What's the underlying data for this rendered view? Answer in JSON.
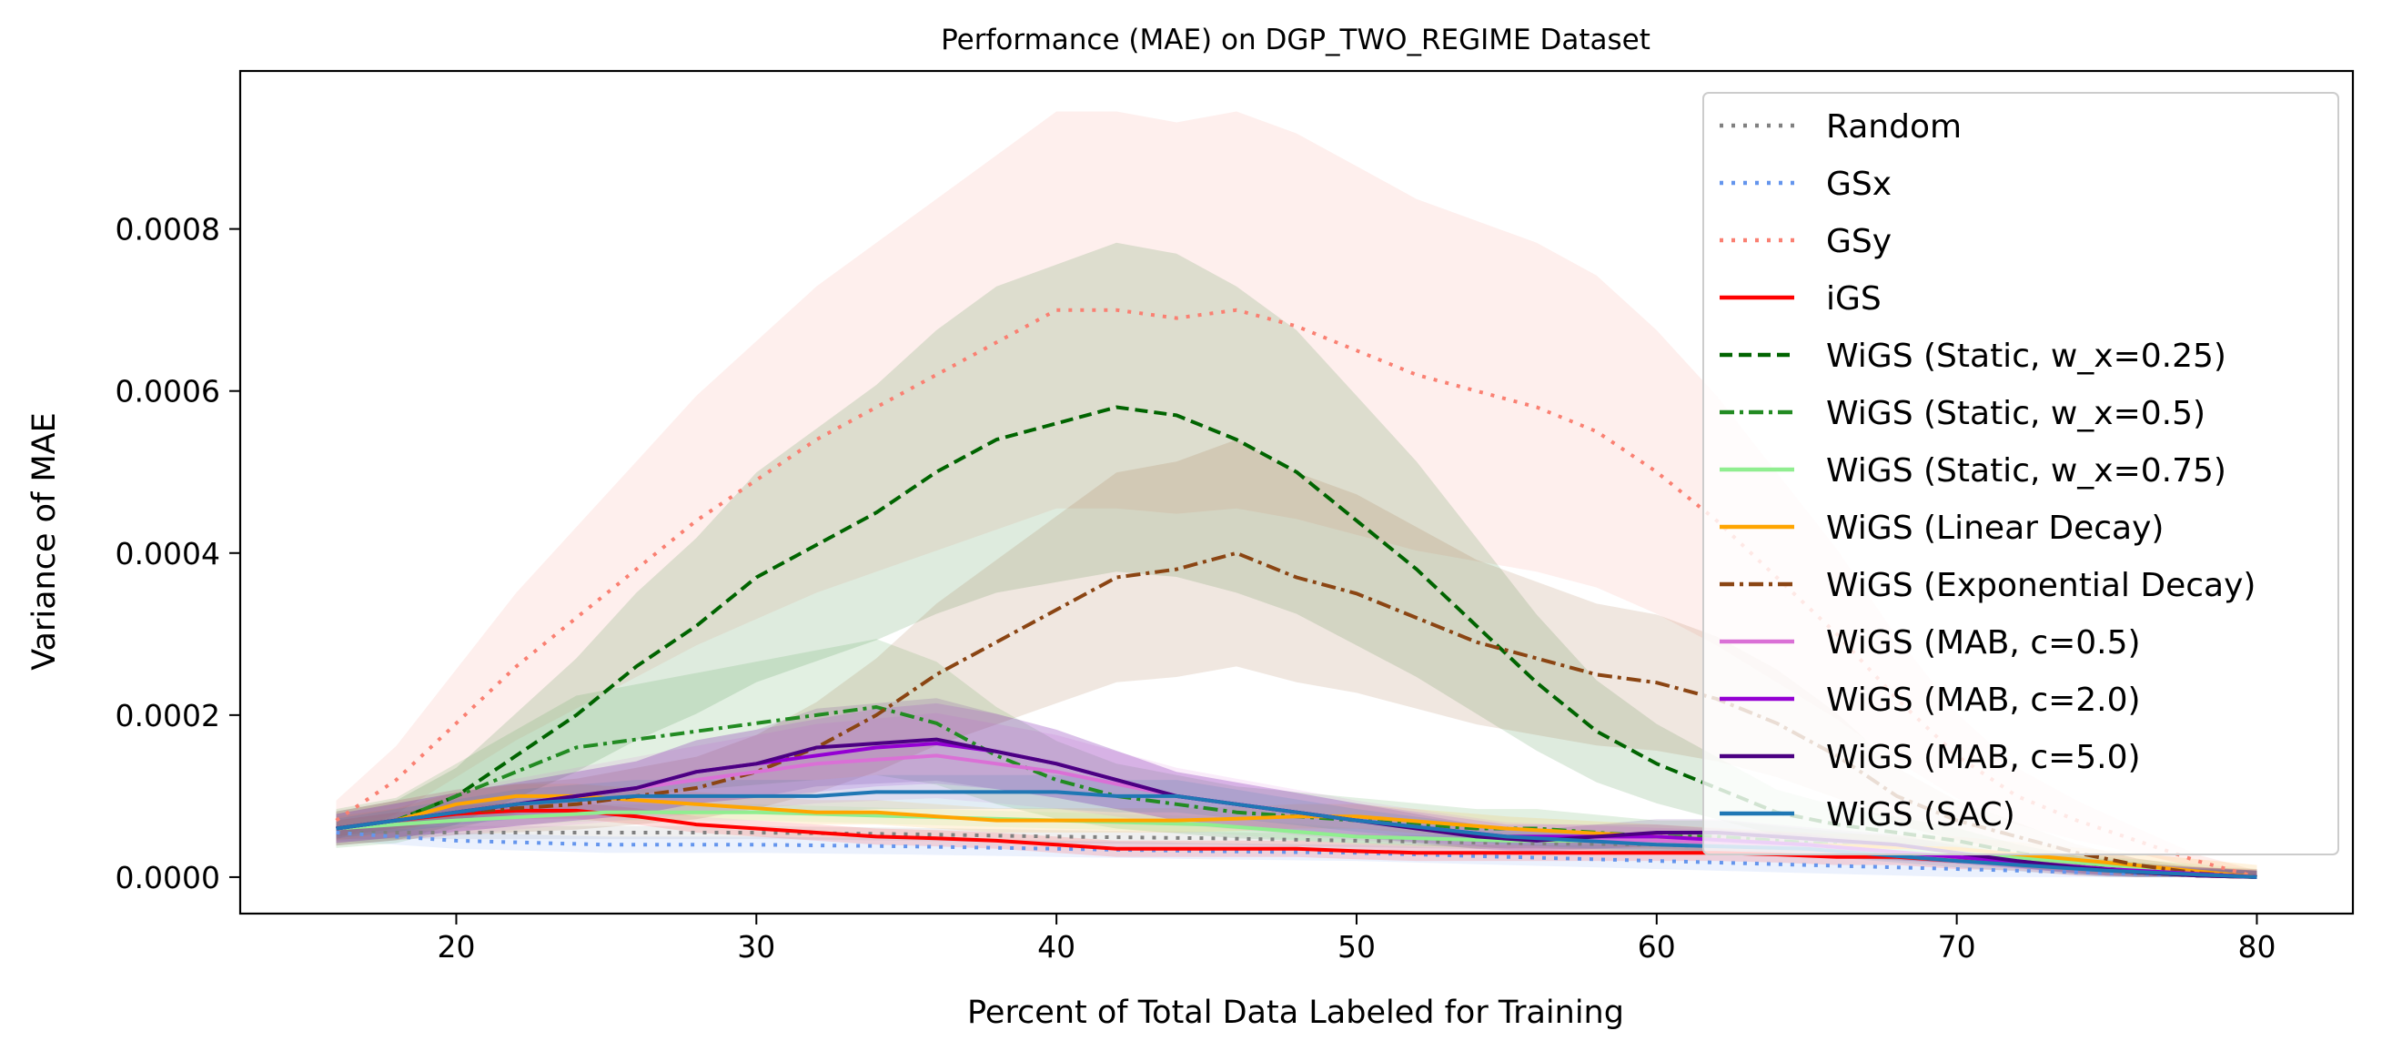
{
  "chart_data": {
    "type": "line",
    "title": "Performance (MAE) on DGP_TWO_REGIME Dataset",
    "xlabel": "Percent of Total Data Labeled for Training",
    "ylabel": "Variance of MAE",
    "xlim": [
      12.8,
      83.2
    ],
    "ylim": [
      -4.5e-05,
      0.000995
    ],
    "xticks": [
      20,
      30,
      40,
      50,
      60,
      70,
      80
    ],
    "xtick_labels": [
      "20",
      "30",
      "40",
      "50",
      "60",
      "70",
      "80"
    ],
    "yticks": [
      0,
      0.0002,
      0.0004,
      0.0006,
      0.0008
    ],
    "ytick_labels": [
      "0.0000",
      "0.0002",
      "0.0004",
      "0.0006",
      "0.0008"
    ],
    "grid": false,
    "legend_position": "top-right",
    "series": [
      {
        "name": "Random",
        "color": "#808080",
        "dash": "dotted",
        "band": 8e-06,
        "x": [
          16,
          20,
          25,
          30,
          35,
          40,
          45,
          50,
          55,
          60,
          65,
          70,
          75,
          80
        ],
        "y": [
          5.5e-05,
          5.5e-05,
          5.5e-05,
          5.5e-05,
          5.3e-05,
          5e-05,
          4.8e-05,
          4.5e-05,
          4.2e-05,
          4e-05,
          3.5e-05,
          2.5e-05,
          1.2e-05,
          0
        ]
      },
      {
        "name": "GSx",
        "color": "#6495ED",
        "dash": "dotted",
        "band": 1e-05,
        "x": [
          16,
          20,
          25,
          30,
          35,
          40,
          45,
          50,
          55,
          60,
          65,
          70,
          75,
          80
        ],
        "y": [
          5.5e-05,
          4.5e-05,
          4e-05,
          4e-05,
          3.8e-05,
          3.5e-05,
          3.2e-05,
          3e-05,
          2.5e-05,
          2e-05,
          1.5e-05,
          1e-05,
          5e-06,
          0
        ]
      },
      {
        "name": "GSy",
        "color": "#FA8072",
        "dash": "dotted",
        "bandScale": 0.35,
        "x": [
          16,
          18,
          20,
          22,
          24,
          26,
          28,
          30,
          32,
          34,
          36,
          38,
          40,
          42,
          44,
          46,
          48,
          50,
          52,
          54,
          56,
          58,
          60,
          62,
          64,
          66,
          68,
          70,
          72,
          74,
          76,
          78,
          80
        ],
        "y": [
          7e-05,
          0.00012,
          0.00019,
          0.00026,
          0.00032,
          0.00038,
          0.00044,
          0.00049,
          0.00054,
          0.00058,
          0.00062,
          0.00066,
          0.0007,
          0.0007,
          0.00069,
          0.0007,
          0.00068,
          0.00065,
          0.00062,
          0.0006,
          0.00058,
          0.00055,
          0.0005,
          0.00044,
          0.00037,
          0.0003,
          0.00022,
          0.00015,
          0.0001,
          7e-05,
          4.5e-05,
          2e-05,
          0
        ]
      },
      {
        "name": "iGS",
        "color": "#FF0000",
        "dash": "solid",
        "band": 1e-05,
        "x": [
          16,
          18,
          20,
          22,
          24,
          26,
          28,
          30,
          32,
          34,
          36,
          38,
          40,
          42,
          44,
          46,
          48,
          50,
          52,
          54,
          56,
          58,
          60,
          62,
          64,
          66,
          68,
          70,
          72,
          74,
          76,
          78,
          80
        ],
        "y": [
          6e-05,
          7e-05,
          7.8e-05,
          8.2e-05,
          8.2e-05,
          7.5e-05,
          6.5e-05,
          6e-05,
          5.5e-05,
          5e-05,
          4.8e-05,
          4.5e-05,
          4e-05,
          3.5e-05,
          3.5e-05,
          3.5e-05,
          3.5e-05,
          3.2e-05,
          3e-05,
          3e-05,
          3e-05,
          3e-05,
          3e-05,
          3e-05,
          2.8e-05,
          2.5e-05,
          2.5e-05,
          2e-05,
          1.8e-05,
          1.2e-05,
          6e-06,
          2e-06,
          0
        ]
      },
      {
        "name": "WiGS (Static, w_x=0.25)",
        "color": "#006400",
        "dash": "dashed",
        "bandScale": 0.35,
        "x": [
          16,
          18,
          20,
          22,
          24,
          26,
          28,
          30,
          32,
          34,
          36,
          38,
          40,
          42,
          44,
          46,
          48,
          50,
          52,
          54,
          56,
          58,
          60,
          62,
          64,
          66,
          68,
          70,
          72,
          74,
          76,
          78,
          80
        ],
        "y": [
          6e-05,
          7e-05,
          0.0001,
          0.00015,
          0.0002,
          0.00026,
          0.00031,
          0.00037,
          0.00041,
          0.00045,
          0.0005,
          0.00054,
          0.00056,
          0.00058,
          0.00057,
          0.00054,
          0.0005,
          0.00044,
          0.00038,
          0.00031,
          0.00024,
          0.00018,
          0.00014,
          0.00011,
          8e-05,
          6.5e-05,
          5.5e-05,
          4.5e-05,
          3e-05,
          1.8e-05,
          1e-05,
          4e-06,
          0
        ]
      },
      {
        "name": "WiGS (Static, w_x=0.5)",
        "color": "#228B22",
        "dash": "dashdot",
        "bandScale": 0.4,
        "x": [
          16,
          18,
          20,
          22,
          24,
          26,
          28,
          30,
          32,
          34,
          36,
          38,
          40,
          42,
          44,
          46,
          48,
          50,
          52,
          54,
          56,
          58,
          60,
          62,
          64,
          66,
          68,
          70,
          72,
          74,
          76,
          78,
          80
        ],
        "y": [
          6e-05,
          7e-05,
          0.0001,
          0.00013,
          0.00016,
          0.00017,
          0.00018,
          0.00019,
          0.0002,
          0.00021,
          0.00019,
          0.00015,
          0.00012,
          0.0001,
          9e-05,
          8e-05,
          7.5e-05,
          7e-05,
          6.5e-05,
          6e-05,
          6e-05,
          5.5e-05,
          5e-05,
          5e-05,
          4.5e-05,
          4e-05,
          3.5e-05,
          3e-05,
          2e-05,
          1.2e-05,
          6e-06,
          2e-06,
          0
        ]
      },
      {
        "name": "WiGS (Static, w_x=0.75)",
        "color": "#90EE90",
        "dash": "solid",
        "band": 1e-05,
        "x": [
          16,
          20,
          25,
          30,
          35,
          40,
          45,
          50,
          55,
          60,
          65,
          70,
          75,
          80
        ],
        "y": [
          6e-05,
          7e-05,
          8e-05,
          8e-05,
          7.5e-05,
          7e-05,
          6.5e-05,
          5e-05,
          4.5e-05,
          4.5e-05,
          4e-05,
          3e-05,
          1.5e-05,
          0
        ]
      },
      {
        "name": "WiGS (Linear Decay)",
        "color": "#FFA500",
        "dash": "solid",
        "band": 1.5e-05,
        "x": [
          16,
          18,
          20,
          22,
          24,
          26,
          28,
          30,
          32,
          34,
          36,
          38,
          40,
          42,
          44,
          46,
          48,
          50,
          55,
          60,
          65,
          70,
          75,
          80
        ],
        "y": [
          6e-05,
          7e-05,
          9e-05,
          0.0001,
          0.0001,
          9.5e-05,
          9e-05,
          8.5e-05,
          8e-05,
          8e-05,
          7.5e-05,
          7e-05,
          7e-05,
          7e-05,
          7e-05,
          7.2e-05,
          7.5e-05,
          7.5e-05,
          6e-05,
          5e-05,
          4e-05,
          3.5e-05,
          1.8e-05,
          0
        ]
      },
      {
        "name": "WiGS (Exponential Decay)",
        "color": "#8B4513",
        "dash": "dashdot",
        "bandScale": 0.35,
        "x": [
          16,
          18,
          20,
          22,
          24,
          26,
          28,
          30,
          32,
          34,
          36,
          38,
          40,
          42,
          44,
          46,
          48,
          50,
          52,
          54,
          56,
          58,
          60,
          62,
          64,
          66,
          68,
          70,
          72,
          74,
          76,
          78,
          80
        ],
        "y": [
          6e-05,
          7e-05,
          8e-05,
          8.5e-05,
          9e-05,
          0.0001,
          0.00011,
          0.00013,
          0.00016,
          0.0002,
          0.00025,
          0.00029,
          0.00033,
          0.00037,
          0.00038,
          0.0004,
          0.00037,
          0.00035,
          0.00032,
          0.00029,
          0.00027,
          0.00025,
          0.00024,
          0.00022,
          0.00019,
          0.00015,
          0.0001,
          7e-05,
          5e-05,
          3e-05,
          1.5e-05,
          5e-06,
          0
        ]
      },
      {
        "name": "WiGS (MAB, c=0.5)",
        "color": "#DA70D6",
        "dash": "solid",
        "bandScale": 0.35,
        "x": [
          16,
          18,
          20,
          22,
          24,
          26,
          28,
          30,
          32,
          34,
          36,
          38,
          40,
          42,
          44,
          46,
          48,
          50,
          55,
          60,
          65,
          70,
          75,
          80
        ],
        "y": [
          6e-05,
          7e-05,
          8e-05,
          9e-05,
          0.0001,
          0.00011,
          0.00012,
          0.00013,
          0.00014,
          0.000145,
          0.00015,
          0.00014,
          0.00013,
          0.000115,
          0.0001,
          9e-05,
          8e-05,
          7e-05,
          5e-05,
          4.5e-05,
          4e-05,
          2.5e-05,
          1e-05,
          0
        ]
      },
      {
        "name": "WiGS (MAB, c=2.0)",
        "color": "#9400D3",
        "dash": "solid",
        "bandScale": 0.3,
        "x": [
          16,
          18,
          20,
          22,
          24,
          26,
          28,
          30,
          32,
          34,
          36,
          38,
          40,
          42,
          44,
          46,
          48,
          50,
          55,
          60,
          65,
          70,
          75,
          80
        ],
        "y": [
          6e-05,
          7e-05,
          8e-05,
          9e-05,
          0.0001,
          0.00011,
          0.00013,
          0.00014,
          0.00015,
          0.00016,
          0.000165,
          0.000155,
          0.00014,
          0.00012,
          0.0001,
          9e-05,
          8e-05,
          7e-05,
          5e-05,
          5e-05,
          4e-05,
          2.5e-05,
          1e-05,
          0
        ]
      },
      {
        "name": "WiGS (MAB, c=5.0)",
        "color": "#4B0082",
        "dash": "solid",
        "bandScale": 0.3,
        "x": [
          16,
          18,
          20,
          22,
          24,
          26,
          28,
          30,
          32,
          34,
          36,
          38,
          40,
          42,
          44,
          46,
          48,
          50,
          52,
          54,
          56,
          58,
          60,
          62,
          64,
          66,
          68,
          70,
          72,
          74,
          76,
          78,
          80
        ],
        "y": [
          6e-05,
          7e-05,
          8e-05,
          9e-05,
          0.0001,
          0.00011,
          0.00013,
          0.00014,
          0.00016,
          0.000165,
          0.00017,
          0.000155,
          0.00014,
          0.00012,
          0.0001,
          9e-05,
          8e-05,
          7e-05,
          6e-05,
          5e-05,
          4.5e-05,
          5e-05,
          5.5e-05,
          5.5e-05,
          5e-05,
          4.5e-05,
          4e-05,
          3e-05,
          2e-05,
          1.2e-05,
          6e-06,
          2e-06,
          0
        ]
      },
      {
        "name": "WiGS (SAC)",
        "color": "#1F77B4",
        "dash": "solid",
        "bandScale": 0.2,
        "x": [
          16,
          18,
          20,
          22,
          24,
          26,
          28,
          30,
          32,
          34,
          36,
          38,
          40,
          42,
          44,
          46,
          48,
          50,
          55,
          60,
          65,
          70,
          75,
          80
        ],
        "y": [
          6e-05,
          7e-05,
          8e-05,
          9e-05,
          9.5e-05,
          0.0001,
          0.0001,
          0.0001,
          0.0001,
          0.000105,
          0.000105,
          0.000105,
          0.000105,
          0.0001,
          0.0001,
          9e-05,
          8e-05,
          7e-05,
          5e-05,
          4e-05,
          3.5e-05,
          2e-05,
          8e-06,
          0
        ]
      }
    ]
  }
}
